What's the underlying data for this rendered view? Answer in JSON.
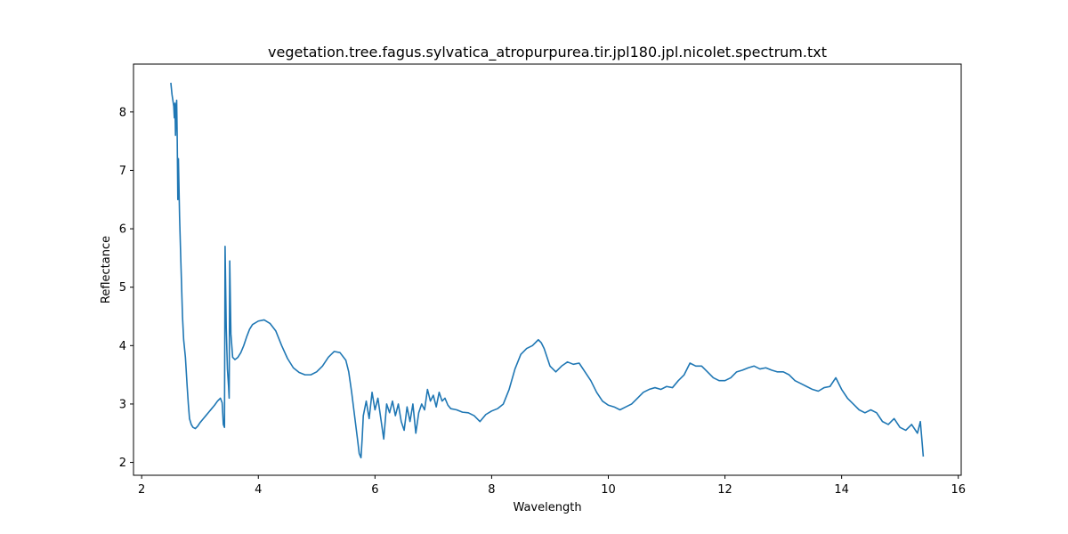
{
  "chart_data": {
    "type": "line",
    "title": "vegetation.tree.fagus.sylvatica_atropurpurea.tir.jpl180.jpl.nicolet.spectrum.txt",
    "xlabel": "Wavelength",
    "ylabel": "Reflectance",
    "xlim": [
      1.86,
      16.05
    ],
    "ylim": [
      1.78,
      8.82
    ],
    "xticks": [
      2,
      4,
      6,
      8,
      10,
      12,
      14,
      16
    ],
    "yticks": [
      2,
      3,
      4,
      5,
      6,
      7,
      8
    ],
    "grid": false,
    "legend": "none",
    "series": [
      {
        "color": "#1f77b4",
        "points": [
          [
            2.5,
            8.5
          ],
          [
            2.52,
            8.3
          ],
          [
            2.55,
            8.1
          ],
          [
            2.56,
            7.9
          ],
          [
            2.57,
            8.15
          ],
          [
            2.58,
            7.6
          ],
          [
            2.59,
            8.05
          ],
          [
            2.6,
            8.2
          ],
          [
            2.61,
            7.5
          ],
          [
            2.62,
            6.5
          ],
          [
            2.63,
            7.2
          ],
          [
            2.65,
            6.2
          ],
          [
            2.67,
            5.5
          ],
          [
            2.7,
            4.5
          ],
          [
            2.72,
            4.1
          ],
          [
            2.75,
            3.8
          ],
          [
            2.78,
            3.3
          ],
          [
            2.8,
            3.0
          ],
          [
            2.82,
            2.75
          ],
          [
            2.85,
            2.65
          ],
          [
            2.88,
            2.6
          ],
          [
            2.92,
            2.58
          ],
          [
            2.96,
            2.62
          ],
          [
            3.0,
            2.68
          ],
          [
            3.05,
            2.74
          ],
          [
            3.1,
            2.8
          ],
          [
            3.15,
            2.86
          ],
          [
            3.2,
            2.92
          ],
          [
            3.25,
            2.98
          ],
          [
            3.3,
            3.05
          ],
          [
            3.35,
            3.1
          ],
          [
            3.38,
            3.02
          ],
          [
            3.4,
            2.65
          ],
          [
            3.42,
            2.6
          ],
          [
            3.43,
            5.7
          ],
          [
            3.45,
            4.3
          ],
          [
            3.47,
            3.6
          ],
          [
            3.49,
            3.3
          ],
          [
            3.5,
            3.1
          ],
          [
            3.51,
            5.45
          ],
          [
            3.53,
            4.2
          ],
          [
            3.56,
            3.8
          ],
          [
            3.6,
            3.76
          ],
          [
            3.65,
            3.8
          ],
          [
            3.7,
            3.88
          ],
          [
            3.75,
            4.0
          ],
          [
            3.8,
            4.15
          ],
          [
            3.85,
            4.28
          ],
          [
            3.9,
            4.36
          ],
          [
            4.0,
            4.42
          ],
          [
            4.1,
            4.44
          ],
          [
            4.2,
            4.38
          ],
          [
            4.3,
            4.25
          ],
          [
            4.4,
            4.0
          ],
          [
            4.5,
            3.78
          ],
          [
            4.6,
            3.62
          ],
          [
            4.7,
            3.54
          ],
          [
            4.8,
            3.5
          ],
          [
            4.9,
            3.5
          ],
          [
            5.0,
            3.55
          ],
          [
            5.1,
            3.65
          ],
          [
            5.2,
            3.8
          ],
          [
            5.3,
            3.9
          ],
          [
            5.4,
            3.88
          ],
          [
            5.5,
            3.75
          ],
          [
            5.55,
            3.55
          ],
          [
            5.6,
            3.2
          ],
          [
            5.65,
            2.8
          ],
          [
            5.7,
            2.4
          ],
          [
            5.73,
            2.15
          ],
          [
            5.76,
            2.08
          ],
          [
            5.78,
            2.4
          ],
          [
            5.8,
            2.8
          ],
          [
            5.85,
            3.05
          ],
          [
            5.9,
            2.75
          ],
          [
            5.95,
            3.2
          ],
          [
            6.0,
            2.9
          ],
          [
            6.05,
            3.1
          ],
          [
            6.1,
            2.75
          ],
          [
            6.15,
            2.4
          ],
          [
            6.2,
            3.0
          ],
          [
            6.25,
            2.85
          ],
          [
            6.3,
            3.05
          ],
          [
            6.35,
            2.8
          ],
          [
            6.4,
            3.0
          ],
          [
            6.45,
            2.7
          ],
          [
            6.5,
            2.55
          ],
          [
            6.55,
            2.95
          ],
          [
            6.6,
            2.7
          ],
          [
            6.65,
            3.0
          ],
          [
            6.7,
            2.5
          ],
          [
            6.75,
            2.85
          ],
          [
            6.8,
            3.0
          ],
          [
            6.85,
            2.9
          ],
          [
            6.9,
            3.25
          ],
          [
            6.95,
            3.05
          ],
          [
            7.0,
            3.15
          ],
          [
            7.05,
            2.95
          ],
          [
            7.1,
            3.2
          ],
          [
            7.15,
            3.05
          ],
          [
            7.2,
            3.1
          ],
          [
            7.25,
            2.98
          ],
          [
            7.3,
            2.92
          ],
          [
            7.4,
            2.9
          ],
          [
            7.5,
            2.86
          ],
          [
            7.6,
            2.85
          ],
          [
            7.7,
            2.8
          ],
          [
            7.8,
            2.7
          ],
          [
            7.9,
            2.82
          ],
          [
            8.0,
            2.88
          ],
          [
            8.1,
            2.92
          ],
          [
            8.2,
            3.0
          ],
          [
            8.3,
            3.25
          ],
          [
            8.4,
            3.6
          ],
          [
            8.5,
            3.85
          ],
          [
            8.6,
            3.95
          ],
          [
            8.7,
            4.0
          ],
          [
            8.8,
            4.1
          ],
          [
            8.85,
            4.05
          ],
          [
            8.9,
            3.95
          ],
          [
            9.0,
            3.65
          ],
          [
            9.1,
            3.55
          ],
          [
            9.2,
            3.65
          ],
          [
            9.3,
            3.72
          ],
          [
            9.4,
            3.68
          ],
          [
            9.5,
            3.7
          ],
          [
            9.6,
            3.55
          ],
          [
            9.7,
            3.4
          ],
          [
            9.8,
            3.2
          ],
          [
            9.9,
            3.05
          ],
          [
            10.0,
            2.98
          ],
          [
            10.1,
            2.95
          ],
          [
            10.2,
            2.9
          ],
          [
            10.3,
            2.95
          ],
          [
            10.4,
            3.0
          ],
          [
            10.5,
            3.1
          ],
          [
            10.6,
            3.2
          ],
          [
            10.7,
            3.25
          ],
          [
            10.8,
            3.28
          ],
          [
            10.9,
            3.25
          ],
          [
            11.0,
            3.3
          ],
          [
            11.1,
            3.28
          ],
          [
            11.2,
            3.4
          ],
          [
            11.3,
            3.5
          ],
          [
            11.4,
            3.7
          ],
          [
            11.5,
            3.65
          ],
          [
            11.6,
            3.65
          ],
          [
            11.7,
            3.55
          ],
          [
            11.8,
            3.45
          ],
          [
            11.9,
            3.4
          ],
          [
            12.0,
            3.4
          ],
          [
            12.1,
            3.45
          ],
          [
            12.2,
            3.55
          ],
          [
            12.3,
            3.58
          ],
          [
            12.4,
            3.62
          ],
          [
            12.5,
            3.65
          ],
          [
            12.6,
            3.6
          ],
          [
            12.7,
            3.62
          ],
          [
            12.8,
            3.58
          ],
          [
            12.9,
            3.55
          ],
          [
            13.0,
            3.55
          ],
          [
            13.1,
            3.5
          ],
          [
            13.2,
            3.4
          ],
          [
            13.3,
            3.35
          ],
          [
            13.4,
            3.3
          ],
          [
            13.5,
            3.25
          ],
          [
            13.6,
            3.22
          ],
          [
            13.7,
            3.28
          ],
          [
            13.8,
            3.3
          ],
          [
            13.9,
            3.45
          ],
          [
            14.0,
            3.25
          ],
          [
            14.1,
            3.1
          ],
          [
            14.2,
            3.0
          ],
          [
            14.3,
            2.9
          ],
          [
            14.4,
            2.85
          ],
          [
            14.5,
            2.9
          ],
          [
            14.6,
            2.85
          ],
          [
            14.7,
            2.7
          ],
          [
            14.8,
            2.65
          ],
          [
            14.9,
            2.75
          ],
          [
            15.0,
            2.6
          ],
          [
            15.1,
            2.55
          ],
          [
            15.2,
            2.65
          ],
          [
            15.3,
            2.5
          ],
          [
            15.35,
            2.7
          ],
          [
            15.4,
            2.1
          ]
        ]
      }
    ]
  }
}
